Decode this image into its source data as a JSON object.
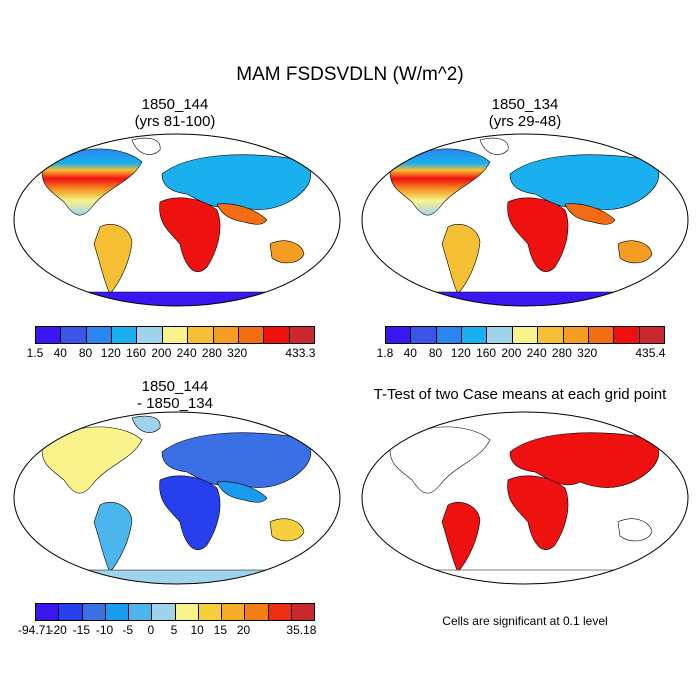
{
  "title": "MAM FSDSVDLN (W/m^2)",
  "panels": [
    {
      "title_line1": "1850_144",
      "title_line2": "(yrs 81-100)",
      "colorbar": {
        "colors": [
          "#3a17f2",
          "#3b55e6",
          "#2a86ef",
          "#1ab0ef",
          "#9fd3ec",
          "#f9f38c",
          "#f5c033",
          "#f59c23",
          "#f46d14",
          "#ef1010",
          "#c9292e"
        ],
        "labels": [
          "1.5",
          "40",
          "80",
          "120",
          "160",
          "200",
          "240",
          "280",
          "320",
          "433.3"
        ]
      }
    },
    {
      "title_line1": "1850_134",
      "title_line2": "(yrs 29-48)",
      "colorbar": {
        "colors": [
          "#3a17f2",
          "#3b55e6",
          "#2a86ef",
          "#1ab0ef",
          "#9fd3ec",
          "#f9f38c",
          "#f5c033",
          "#f59c23",
          "#f46d14",
          "#ef1010",
          "#c9292e"
        ],
        "labels": [
          "1.8",
          "40",
          "80",
          "120",
          "160",
          "200",
          "240",
          "280",
          "320",
          "435.4"
        ]
      }
    },
    {
      "title_line1": "1850_144",
      "title_line2": "- 1850_134",
      "colorbar": {
        "colors": [
          "#3a17f2",
          "#2540ec",
          "#3b6fe6",
          "#1a9bef",
          "#4bb6ee",
          "#9fd3ec",
          "#f9f38c",
          "#f5d03a",
          "#f5ac22",
          "#f47e14",
          "#ef2e10",
          "#c9292e"
        ],
        "labels": [
          "-94.71",
          "-20",
          "-15",
          "-10",
          "-5",
          "0",
          "5",
          "10",
          "15",
          "20",
          "35.18"
        ]
      }
    },
    {
      "title_line1": "T-Test of two Case means at each grid point",
      "note": "Cells are significant at 0.1 level"
    }
  ]
}
